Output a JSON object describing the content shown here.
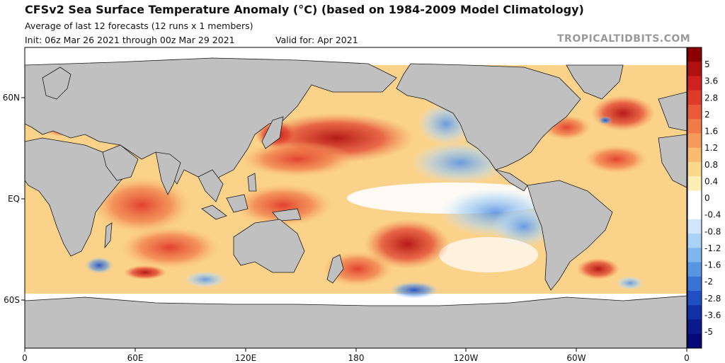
{
  "header": {
    "title": "CFSv2 Sea Surface Temperature Anomaly (°C) (based on 1984-2009 Model Climatology)",
    "subtitle": "Average of last 12 forecasts (12 runs x 1 members)",
    "init": "Init: 06z Mar 26 2021 through 00z Mar 29 2021",
    "valid": "Valid for: Apr 2021",
    "brand": "TROPICALTIDBITS.COM"
  },
  "axes": {
    "lon_ticks": [
      "0",
      "60E",
      "120E",
      "180",
      "120W",
      "60W",
      "0"
    ],
    "lat_ticks": [
      "60N",
      "EQ",
      "60S"
    ]
  },
  "colorbar": {
    "labels": [
      "5",
      "3.6",
      "2.8",
      "2",
      "1.6",
      "1.2",
      "0.8",
      "0.4",
      "0",
      "-0.4",
      "-0.8",
      "-1.2",
      "-1.6",
      "-2",
      "-2.8",
      "-3.6",
      "-5"
    ],
    "colors": [
      "#8b0000",
      "#b01010",
      "#d02020",
      "#e03a2a",
      "#ea5a3a",
      "#f07a48",
      "#f59a5a",
      "#f8bb70",
      "#fbd98c",
      "#fdeeb6",
      "#ffffff",
      "#ffffff",
      "#cfe6fb",
      "#a9d2f5",
      "#7fb6ee",
      "#5a95e4",
      "#3a72d6",
      "#2150c4",
      "#1230a8",
      "#0a1a8c",
      "#050a78"
    ]
  },
  "map": {
    "land_color": "#c0c0c0",
    "ice_color": "#ffffff"
  }
}
